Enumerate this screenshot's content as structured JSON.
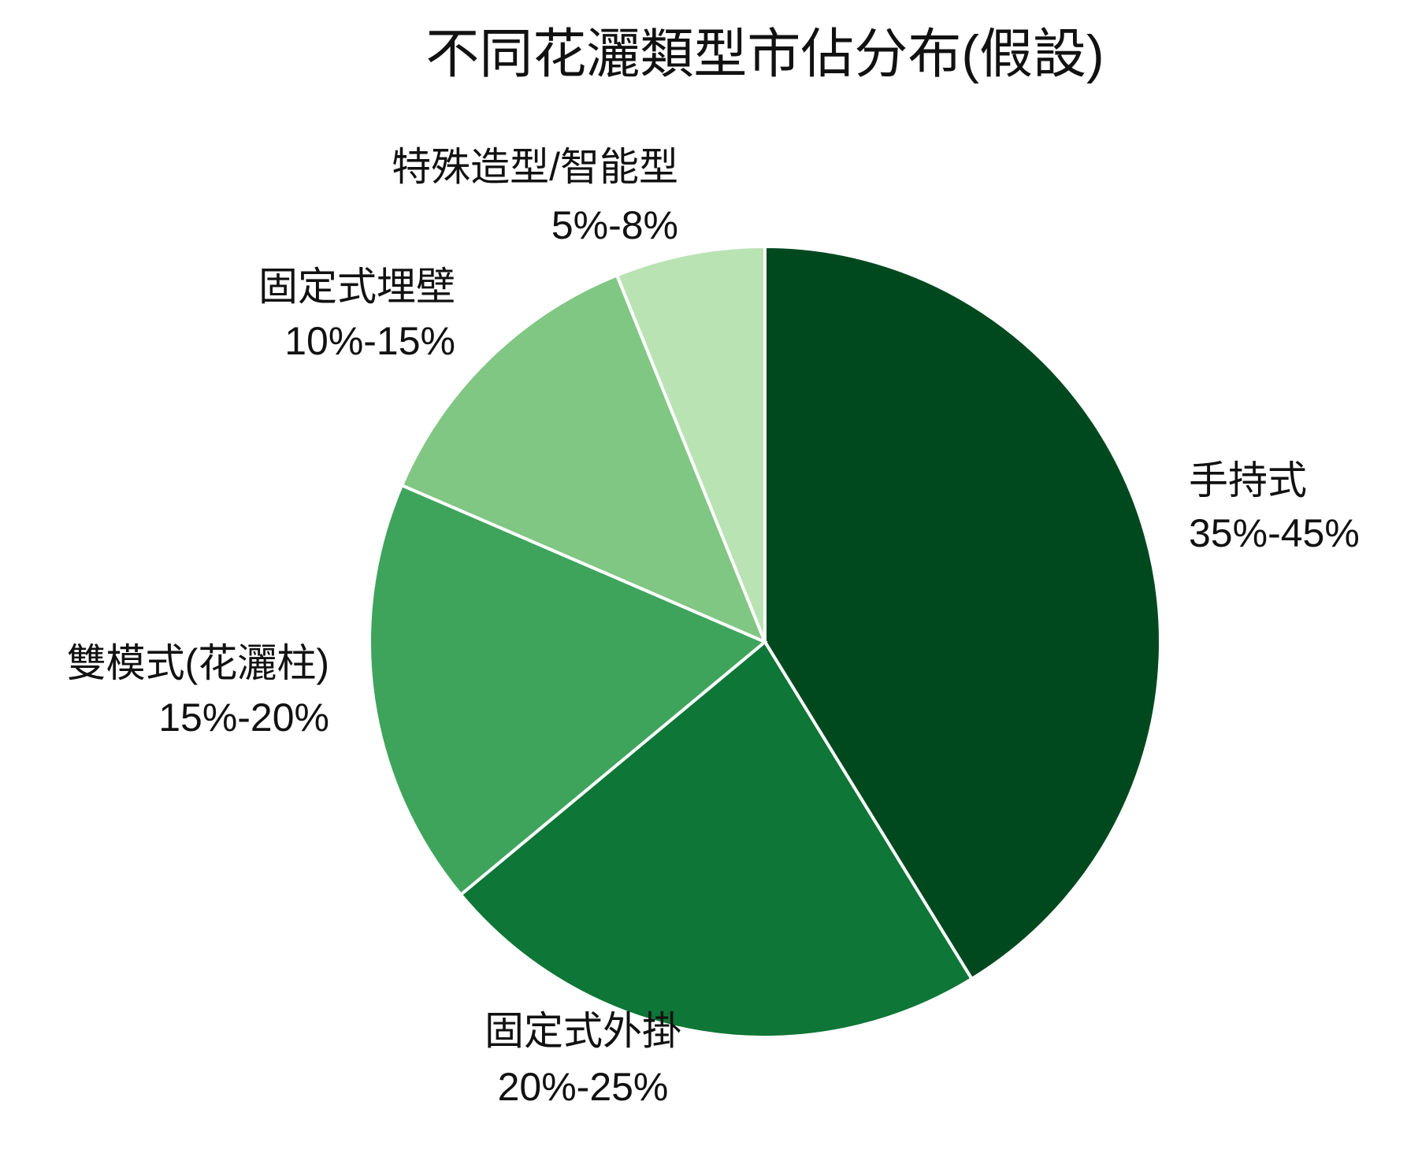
{
  "chart_data": {
    "type": "pie",
    "title": "不同花灑類型市佔分布(假設)",
    "categories": [
      "手持式",
      "固定式外掛",
      "雙模式(花灑柱)",
      "固定式埋壁",
      "特殊造型/智能型"
    ],
    "values": [
      41.2,
      22.7,
      17.5,
      12.4,
      6.1
    ],
    "ranges": [
      "35%-45%",
      "20%-25%",
      "15%-20%",
      "10%-15%",
      "5%-8%"
    ],
    "colors": [
      "#00491f",
      "#0e7636",
      "#3ea45c",
      "#80c783",
      "#b9e3b3"
    ]
  }
}
